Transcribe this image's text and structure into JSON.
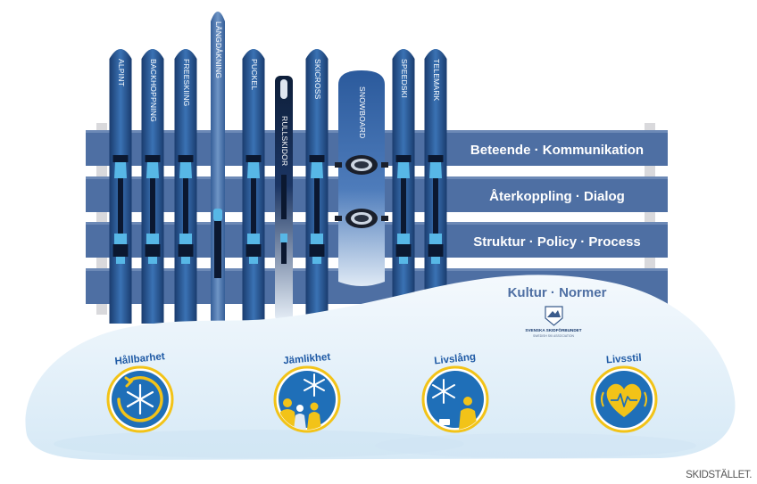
{
  "skis": [
    {
      "label": "ALPINT"
    },
    {
      "label": "BACKHOPPNING"
    },
    {
      "label": "FREESKIING"
    },
    {
      "label": "LÄNGDÅKNING"
    },
    {
      "label": "PUCKEL"
    },
    {
      "label": "RULLSKIDOR"
    },
    {
      "label": "SKICROSS"
    },
    {
      "label": "SNOWBOARD"
    },
    {
      "label": "SPEEDSKI"
    },
    {
      "label": "TELEMARK"
    }
  ],
  "rails": [
    {
      "label": "Beteende · Kommunikation"
    },
    {
      "label": "Återkoppling · Dialog"
    },
    {
      "label": "Struktur · Policy · Process"
    },
    {
      "label": "Kultur · Normer"
    }
  ],
  "values": [
    {
      "label": "Hållbarhet",
      "icon": "snowflake-cycle-icon"
    },
    {
      "label": "Jämlikhet",
      "icon": "people-snowflake-icon"
    },
    {
      "label": "Livslång",
      "icon": "snowflake-person-icon"
    },
    {
      "label": "Livsstil",
      "icon": "heart-pulse-icon"
    }
  ],
  "logo": {
    "name": "SVENSKA SKIDFÖRBUNDET",
    "subtitle": "SWEDISH SKI ASSOCIATION"
  },
  "brand": "SKIDSTÄLLET.",
  "colors": {
    "rail": "#4e6fa3",
    "ski_dark": "#1c3f73",
    "ski_mid": "#2f63a4",
    "accent": "#57b7e6",
    "snow": "#e5f2fb",
    "icon_bg": "#1f6fb8",
    "icon_ring": "#f2c318"
  }
}
